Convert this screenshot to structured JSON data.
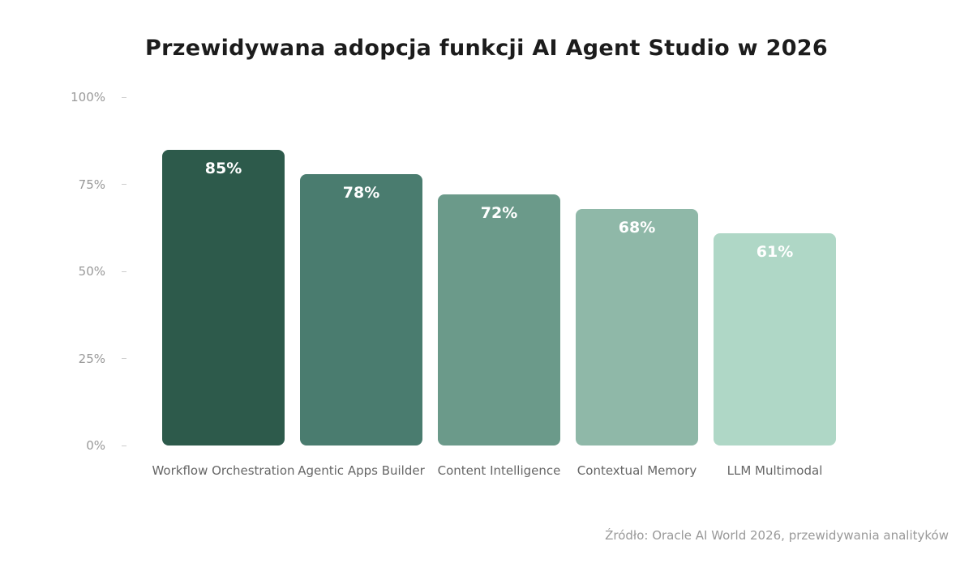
{
  "chart_data": {
    "type": "bar",
    "title": "Przewidywana adopcja funkcji AI Agent Studio w 2026",
    "categories": [
      "Workflow Orchestration",
      "Agentic Apps Builder",
      "Content Intelligence",
      "Contextual Memory",
      "LLM Multimodal"
    ],
    "values": [
      85,
      78,
      72,
      68,
      61
    ],
    "value_labels": [
      "85%",
      "78%",
      "72%",
      "68%",
      "61%"
    ],
    "colors": [
      "#2d5a4b",
      "#4a7c6f",
      "#6b9a8a",
      "#8fb8a8",
      "#afd7c6"
    ],
    "xlabel": "",
    "ylabel": "",
    "ylim": [
      0,
      100
    ],
    "yticks": [
      "0%",
      "25%",
      "50%",
      "75%",
      "100%"
    ],
    "grid": false,
    "legend": null,
    "source": "Źródło: Oracle AI World 2026, przewidywania analityków"
  }
}
